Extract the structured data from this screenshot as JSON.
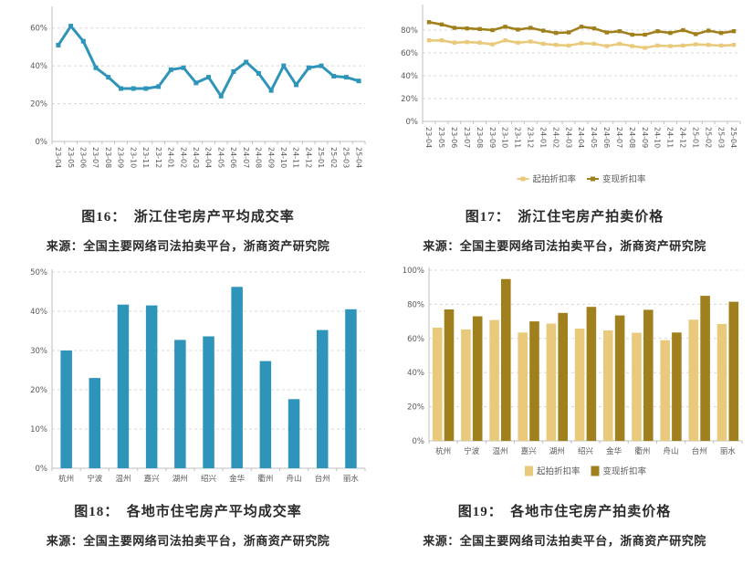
{
  "colors": {
    "teal": "#2E94B9",
    "gold_light": "#E9CA7C",
    "gold_dark": "#A0801C",
    "axis_text": "#595959",
    "gridline": "#D8D8D8",
    "axis_line": "#BFBFBF",
    "caption_text": "#2B2B2B"
  },
  "chart_data": [
    {
      "type": "line",
      "title": "图16：　浙江住宅房产平均成交率",
      "source": "来源：全国主要网络司法拍卖平台，浙商资产研究院",
      "categories": [
        "23-04",
        "23-05",
        "23-06",
        "23-07",
        "23-08",
        "23-09",
        "23-10",
        "23-11",
        "23-12",
        "24-01",
        "24-02",
        "24-03",
        "24-04",
        "24-05",
        "24-06",
        "24-07",
        "24-08",
        "24-09",
        "24-10",
        "24-11",
        "24-12",
        "25-01",
        "25-02",
        "25-03",
        "25-04"
      ],
      "series": [
        {
          "name": "平均成交率",
          "color": "teal",
          "values": [
            51,
            61,
            53,
            39,
            34,
            28,
            28,
            28,
            29,
            38,
            39,
            31,
            34,
            24,
            37,
            42,
            36,
            27,
            40,
            30,
            39,
            40,
            34.5,
            34,
            32
          ]
        }
      ],
      "ylim": [
        0,
        70
      ],
      "yticks": [
        0,
        20,
        40,
        60
      ],
      "ytick_suffix": "%",
      "grid": true,
      "legend": null
    },
    {
      "type": "line",
      "title": "图17：　浙江住宅房产拍卖价格",
      "source": "来源：全国主要网络司法拍卖平台，浙商资产研究院",
      "categories": [
        "23-04",
        "23-05",
        "23-06",
        "23-07",
        "23-08",
        "23-09",
        "23-10",
        "23-11",
        "23-12",
        "24-01",
        "24-02",
        "24-03",
        "24-04",
        "24-05",
        "24-06",
        "24-07",
        "24-08",
        "24-09",
        "24-10",
        "24-11",
        "24-12",
        "25-01",
        "25-02",
        "25-03",
        "25-04"
      ],
      "series": [
        {
          "name": "起拍折扣率",
          "color": "gold_light",
          "values": [
            71,
            71,
            69,
            69.5,
            69,
            67.5,
            71,
            69,
            70,
            68,
            67,
            66.5,
            68.5,
            68,
            66,
            68,
            66,
            64.5,
            66.5,
            66,
            66.5,
            67.5,
            67,
            66.5,
            67
          ]
        },
        {
          "name": "变现折扣率",
          "color": "gold_dark",
          "values": [
            87,
            85,
            82,
            81.5,
            81,
            80,
            83,
            80.5,
            82,
            79.5,
            77.5,
            78,
            83,
            81.5,
            78,
            79,
            76,
            76,
            79,
            77.5,
            80,
            76.5,
            79.5,
            77.5,
            79
          ]
        }
      ],
      "ylim": [
        0,
        100
      ],
      "yticks": [
        0,
        20,
        40,
        60,
        80
      ],
      "ytick_suffix": "%",
      "grid": true,
      "legend": [
        {
          "label": "起拍折扣率",
          "color": "gold_light"
        },
        {
          "label": "变现折扣率",
          "color": "gold_dark"
        }
      ]
    },
    {
      "type": "bar",
      "title": "图18：　各地市住宅房产平均成交率",
      "source": "来源：全国主要网络司法拍卖平台，浙商资产研究院",
      "categories": [
        "杭州",
        "宁波",
        "温州",
        "嘉兴",
        "湖州",
        "绍兴",
        "金华",
        "衢州",
        "舟山",
        "台州",
        "丽水"
      ],
      "series": [
        {
          "name": "平均成交率",
          "color": "teal",
          "values": [
            30,
            23,
            41.7,
            41.5,
            32.7,
            33.6,
            46.2,
            27.3,
            17.6,
            35.2,
            40.5
          ]
        }
      ],
      "ylim": [
        0,
        50
      ],
      "yticks": [
        0,
        10,
        20,
        30,
        40,
        50
      ],
      "ytick_suffix": "%",
      "grid": true,
      "legend": null
    },
    {
      "type": "bar",
      "title": "图19：　各地市住宅房产拍卖价格",
      "source": "来源：全国主要网络司法拍卖平台，浙商资产研究院",
      "categories": [
        "杭州",
        "宁波",
        "温州",
        "嘉兴",
        "湖州",
        "绍兴",
        "金华",
        "衢州",
        "舟山",
        "台州",
        "丽水"
      ],
      "series": [
        {
          "name": "起拍折扣率",
          "color": "gold_light",
          "values": [
            66.3,
            65.3,
            70.8,
            63.5,
            68.7,
            65.8,
            64.7,
            63.3,
            59,
            71,
            68.5
          ]
        },
        {
          "name": "变现折扣率",
          "color": "gold_dark",
          "values": [
            77,
            73,
            94.8,
            70,
            75,
            78.5,
            73.5,
            76.8,
            63.5,
            85,
            81.5
          ]
        }
      ],
      "ylim": [
        0,
        100
      ],
      "yticks": [
        0,
        20,
        40,
        60,
        80,
        100
      ],
      "ytick_suffix": "%",
      "grid": true,
      "legend": [
        {
          "label": "起拍折扣率",
          "color": "gold_light"
        },
        {
          "label": "变现折扣率",
          "color": "gold_dark"
        }
      ]
    }
  ]
}
